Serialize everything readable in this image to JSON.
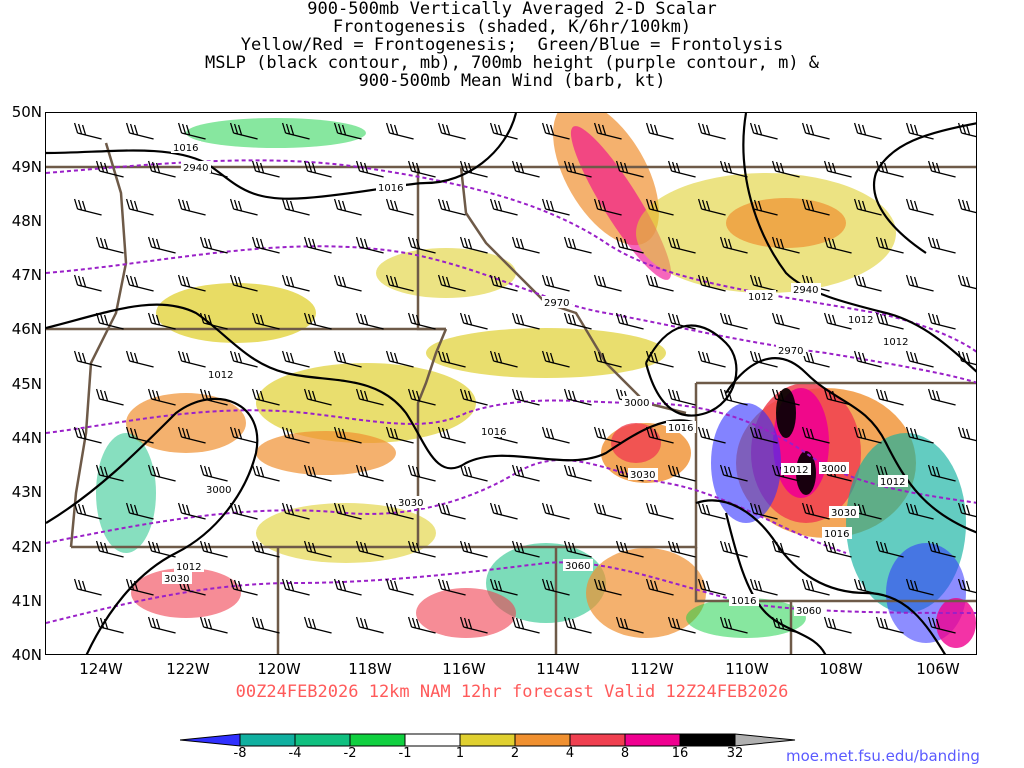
{
  "title_lines": [
    "900-500mb Vertically Averaged 2-D Scalar",
    "Frontogenesis (shaded, K/6hr/100km)",
    "Yellow/Red = Frontogenesis;  Green/Blue = Frontolysis",
    "MSLP (black contour, mb), 700mb height (purple contour, m) &",
    "900-500mb Mean Wind (barb, kt)"
  ],
  "lat_labels": [
    "50N",
    "49N",
    "48N",
    "47N",
    "46N",
    "45N",
    "44N",
    "43N",
    "42N",
    "41N",
    "40N"
  ],
  "lon_labels": [
    "124W",
    "122W",
    "120W",
    "118W",
    "116W",
    "114W",
    "112W",
    "110W",
    "108W",
    "106W"
  ],
  "valid_text": "00Z24FEB2026 12km NAM 12hr forecast Valid 12Z24FEB2026",
  "colorbar": {
    "labels": [
      "-8",
      "-4",
      "-2",
      "-1",
      "1",
      "2",
      "4",
      "8",
      "16",
      "32"
    ],
    "colors": [
      "#3030ff",
      "#10b0a0",
      "#10c080",
      "#10d040",
      "#ffffff",
      "#e0d030",
      "#f09030",
      "#f04050",
      "#f00090",
      "#000000",
      "#b0b0b0"
    ]
  },
  "credit": "moe.met.fsu.edu/banding",
  "contour_labels": {
    "mslp": [
      "1016",
      "1016",
      "1012",
      "1016",
      "1012",
      "1016",
      "1012",
      "1012",
      "1012",
      "1016",
      "1016",
      "1012",
      "1012"
    ],
    "height": [
      "2940",
      "2940",
      "2970",
      "2970",
      "3000",
      "3000",
      "3030",
      "3030",
      "3000",
      "3060",
      "3060",
      "3030",
      "3030"
    ]
  }
}
